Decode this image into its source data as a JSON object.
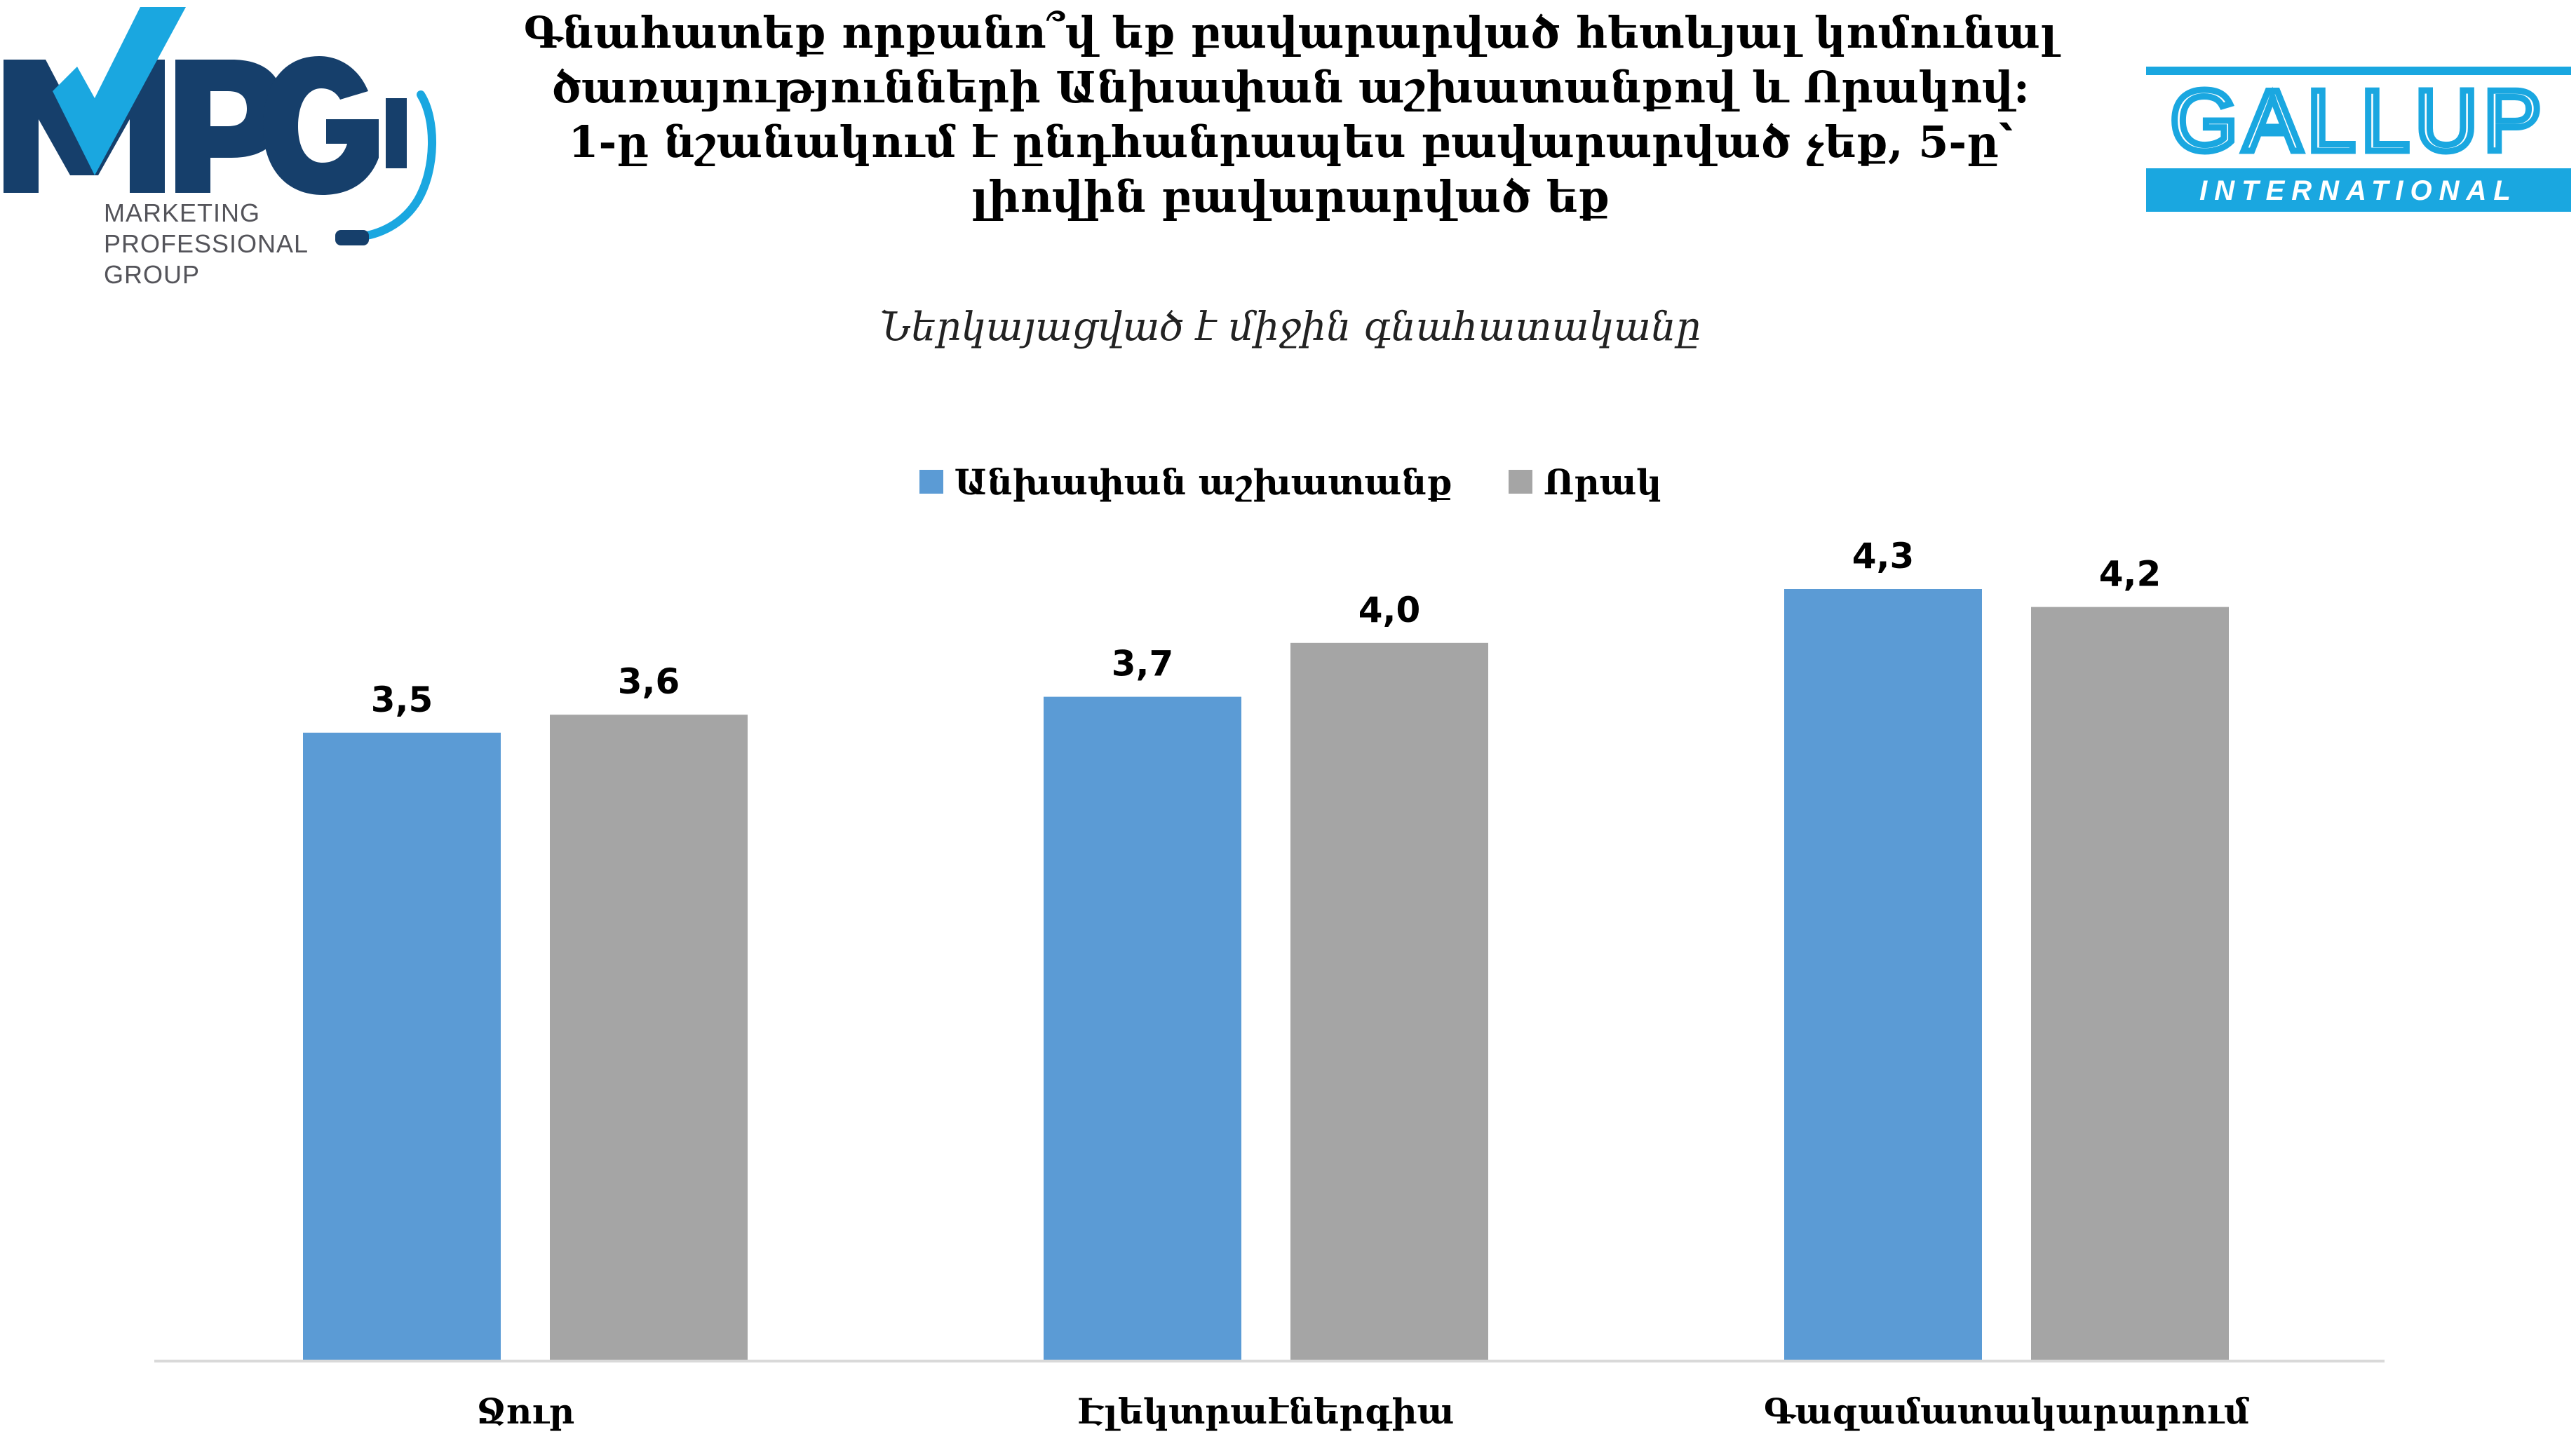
{
  "logos": {
    "mpg": {
      "mark": "MPG",
      "lines": [
        "MARKETING",
        "PROFESSIONAL",
        "GROUP"
      ],
      "color_dark": "#163f6b",
      "color_light": "#1aa7e0"
    },
    "gallup": {
      "name": "GALLUP",
      "tagline": "INTERNATIONAL",
      "color": "#1aa7e0"
    }
  },
  "chart_data": {
    "type": "bar",
    "title_lines": [
      "Գնահատեք որքանո՞վ եք բավարարված հետևյալ կոմունալ",
      "ծառայությունների Անխափան աշխատանքով և Որակով:",
      "1-ը նշանակում է ընդհանրապես բավարարված չեք, 5-ը՝",
      "լիովին բավարարված եք"
    ],
    "subtitle": "Ներկայացված է միջին գնահատականը",
    "categories": [
      "Ջուր",
      "Էլեկտրաէներգիա",
      "Գազամատակարարում"
    ],
    "series": [
      {
        "name": "Անխափան աշխատանք",
        "color": "#5b9bd5",
        "values": [
          3.5,
          3.7,
          4.3
        ],
        "labels": [
          "3,5",
          "3,7",
          "4,3"
        ]
      },
      {
        "name": "Որակ",
        "color": "#a5a5a5",
        "values": [
          3.6,
          4.0,
          4.2
        ],
        "labels": [
          "3,6",
          "4,0",
          "4,2"
        ]
      }
    ],
    "ylim": [
      0,
      4.3
    ],
    "grid": false,
    "legend_position": "top-center"
  }
}
